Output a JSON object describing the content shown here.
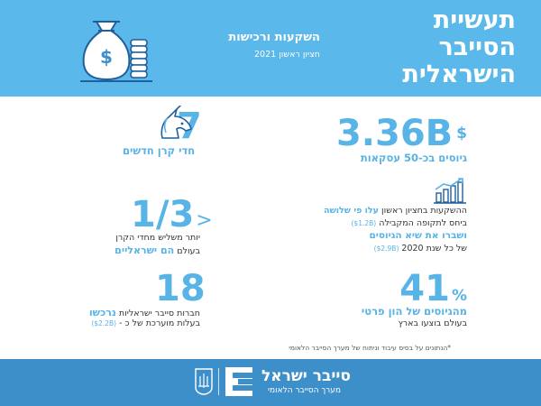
{
  "header": {
    "title_line1": "תעשיית",
    "title_line2": "הסייבר",
    "title_line3": "הישראלית",
    "subtitle": "השקעות ורכישות",
    "period": "חציון ראשון 2021",
    "illustration_icon": "money-bag-icon"
  },
  "stats": {
    "raised": {
      "value": "3.36B",
      "currency": "$",
      "caption": "גיוסים בכ-50 עסקאות"
    },
    "unicorns": {
      "value": "7",
      "caption": "חדי קרן חדשים",
      "icon": "unicorn-icon"
    },
    "triple": {
      "icon": "growth-chart-icon",
      "line1_plain": "ההשקעות בחציון ראשון ",
      "line1_accent": "עלו פי שלושה",
      "line2_plain": "ביחס לתקופה המקבילה ",
      "line2_small": "(1.2B$)",
      "line3_accent": "ושברו את שיא הגיוסים",
      "line4_plain": "של כל שנת 2020 ",
      "line4_small": "(2.9B$)"
    },
    "share": {
      "prefix": ">",
      "value": "1/3",
      "line1": "יותר משליש מחדי הקרן",
      "line2_plain": "בעולם ",
      "line2_accent": "הם ישראליים"
    },
    "private": {
      "value": "41",
      "unit": "%",
      "caption": "מהגיוסים של הון פרטי",
      "line2": "בעולם בוצעו בארץ"
    },
    "acquired": {
      "value": "18",
      "line1_plain": "חברות סייבר ישראליות ",
      "line1_accent": "נרכשו",
      "line2_plain": "בעלות מוערכת של כ - ",
      "line2_small": "(2.2B$)"
    }
  },
  "footnote": "*הנתונים על בסיס עיבוד וניתוח של מערך הסייבר הלאומי",
  "footer": {
    "logo_title": "סייבר ישראל",
    "logo_subtitle": "מערך הסייבר הלאומי",
    "logo_icon": "cyber-israel-logo-icon",
    "emblem_icon": "state-emblem-icon"
  },
  "colors": {
    "hero_bg": "#5ab8ea",
    "accent": "#58b3e6",
    "footer_bg": "#3d8fc9"
  }
}
